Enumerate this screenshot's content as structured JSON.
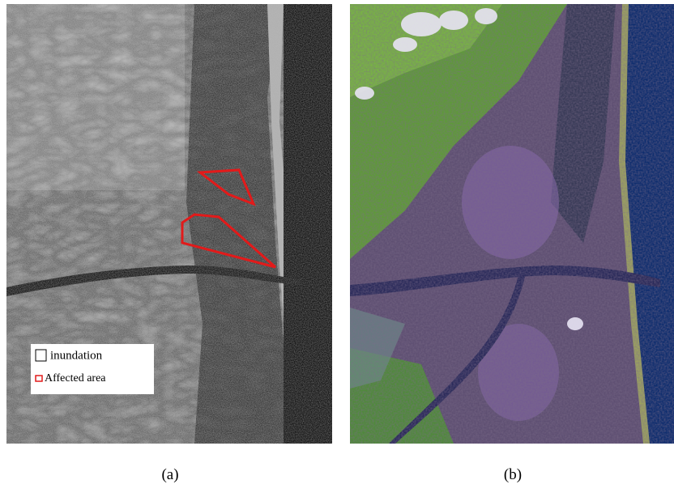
{
  "panels": [
    {
      "label": "(a)",
      "legend": [
        "inundation",
        "Affected area"
      ]
    },
    {
      "label": "(b)"
    }
  ]
}
